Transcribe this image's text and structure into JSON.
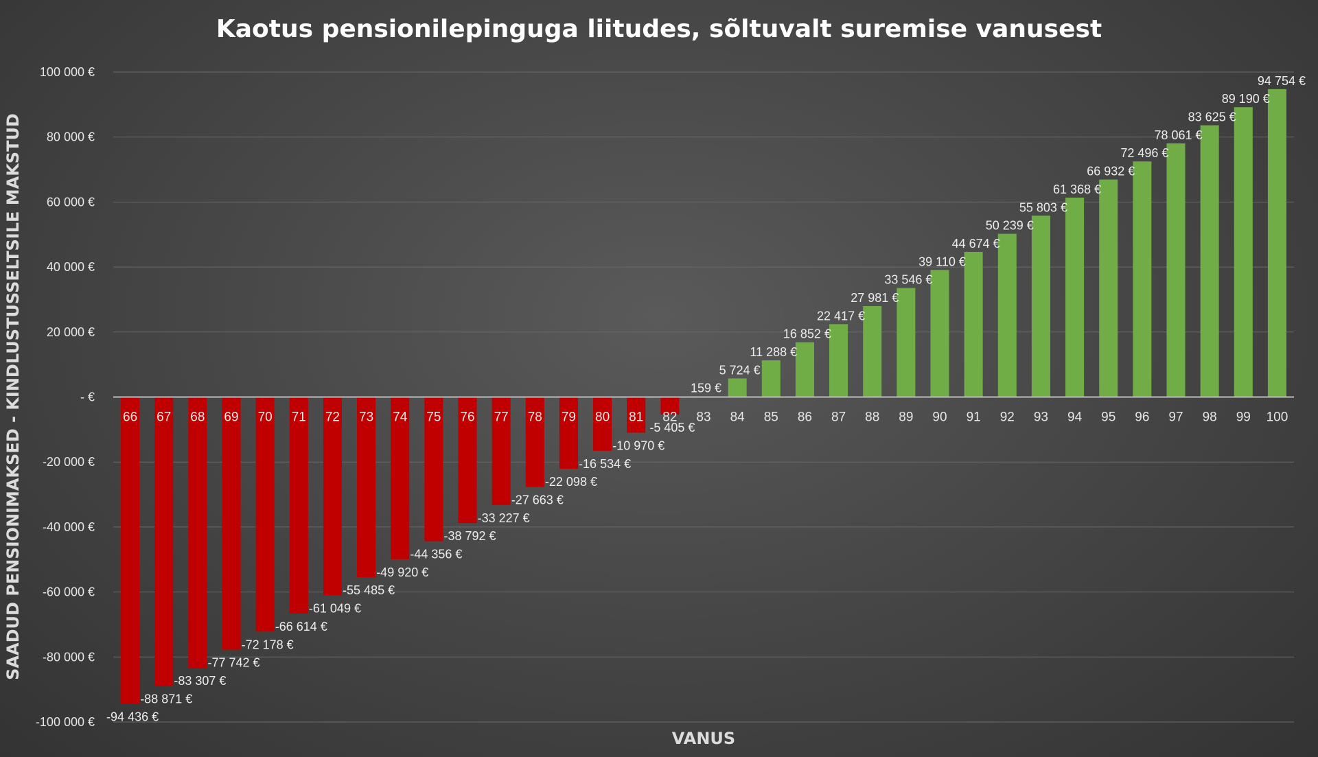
{
  "chart_data": {
    "type": "bar",
    "title": "Kaotus pensionilepinguga liitudes, sõltuvalt suremise vanusest",
    "xlabel": "VANUS",
    "ylabel": "SAADUD PENSIONIMAKSED - KINDLUSTUSSELTSILE MAKSTUD",
    "ylim": [
      -100000,
      100000
    ],
    "yticks": [
      100000,
      80000,
      60000,
      40000,
      20000,
      0,
      -20000,
      -40000,
      -60000,
      -80000,
      -100000
    ],
    "ytick_labels": [
      "100 000 €",
      "80 000 €",
      "60 000 €",
      "40 000 €",
      "20 000 €",
      "-   €",
      "-20 000 €",
      "-40 000 €",
      "-60 000 €",
      "-80 000 €",
      "-100 000 €"
    ],
    "grid": true,
    "colors": {
      "negative": "#c00000",
      "positive": "#70ad47"
    },
    "categories": [
      "66",
      "67",
      "68",
      "69",
      "70",
      "71",
      "72",
      "73",
      "74",
      "75",
      "76",
      "77",
      "78",
      "79",
      "80",
      "81",
      "82",
      "83",
      "84",
      "85",
      "86",
      "87",
      "88",
      "89",
      "90",
      "91",
      "92",
      "93",
      "94",
      "95",
      "96",
      "97",
      "98",
      "99",
      "100"
    ],
    "values": [
      -94436,
      -88871,
      -83307,
      -77742,
      -72178,
      -66614,
      -61049,
      -55485,
      -49920,
      -44356,
      -38792,
      -33227,
      -27663,
      -22098,
      -16534,
      -10970,
      -5405,
      159,
      5724,
      11288,
      16852,
      22417,
      27981,
      33546,
      39110,
      44674,
      50239,
      55803,
      61368,
      66932,
      72496,
      78061,
      83625,
      89190,
      94754
    ],
    "data_labels": [
      "-94 436 €",
      "-88 871 €",
      "-83 307 €",
      "-77 742 €",
      "-72 178 €",
      "-66 614 €",
      "-61 049 €",
      "-55 485 €",
      "-49 920 €",
      "-44 356 €",
      "-38 792 €",
      "-33 227 €",
      "-27 663 €",
      "-22 098 €",
      "-16 534 €",
      "-10 970 €",
      "-5 405 €",
      "159 €",
      "5 724 €",
      "11 288 €",
      "16 852 €",
      "22 417 €",
      "27 981 €",
      "33 546 €",
      "39 110 €",
      "44 674 €",
      "50 239 €",
      "55 803 €",
      "61 368 €",
      "66 932 €",
      "72 496 €",
      "78 061 €",
      "83 625 €",
      "89 190 €",
      "94 754 €"
    ]
  }
}
